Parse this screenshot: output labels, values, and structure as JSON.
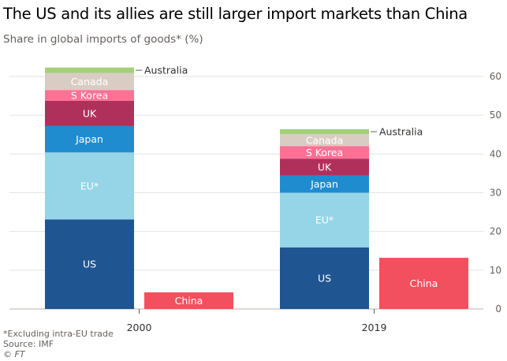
{
  "title": "The US and its allies are still larger import markets than China",
  "subtitle": "Share in global imports of goods* (%)",
  "footnote": "*Excluding intra-EU trade",
  "source": "Source: IMF",
  "copyright": "© FT",
  "chart_data": {
    "type": "bar",
    "stacked": true,
    "categories": [
      "2000",
      "2019"
    ],
    "ylim": [
      0,
      60
    ],
    "yticks": [
      0,
      10,
      20,
      30,
      40,
      50,
      60
    ],
    "grid": true,
    "series": [
      {
        "name": "US",
        "color": "#1f5591",
        "values": [
          23.1,
          15.9
        ]
      },
      {
        "name": "EU*",
        "color": "#96d4e8",
        "values": [
          17.3,
          14.1
        ]
      },
      {
        "name": "Japan",
        "color": "#1e8ccf",
        "values": [
          6.8,
          4.4
        ]
      },
      {
        "name": "UK",
        "color": "#b0305c",
        "values": [
          6.5,
          4.4
        ]
      },
      {
        "name": "S Korea",
        "color": "#ff7095",
        "values": [
          2.8,
          3.2
        ]
      },
      {
        "name": "Canada",
        "color": "#d9cdc3",
        "values": [
          4.4,
          3.1
        ]
      },
      {
        "name": "Australia",
        "color": "#a4d079",
        "values": [
          1.4,
          1.3
        ]
      }
    ],
    "china": {
      "name": "China",
      "color": "#f2505e",
      "values": [
        4.3,
        13.2
      ]
    }
  }
}
